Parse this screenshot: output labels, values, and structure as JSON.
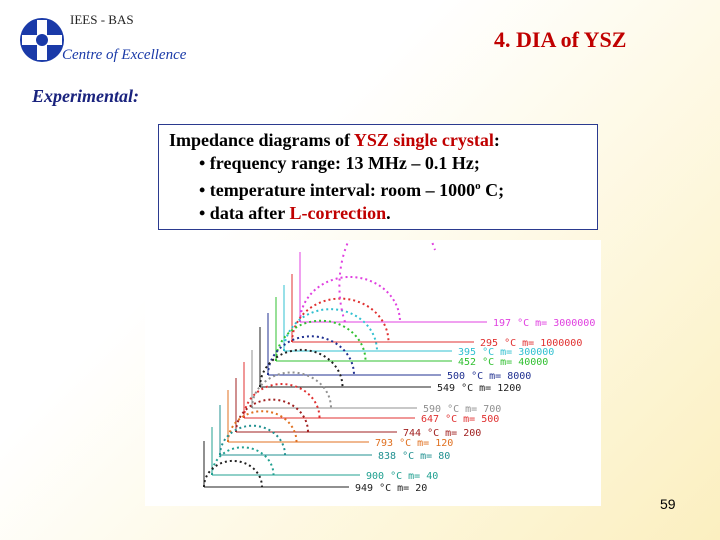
{
  "header": {
    "institute": "IEES - BAS",
    "centre": "Centre of Excellence",
    "title": "4. DIA of YSZ"
  },
  "section": "Experimental:",
  "box": {
    "line1": {
      "before": "Impedance diagrams of ",
      "highlight": "YSZ single crystal",
      "after": ":"
    },
    "line2": "• frequency range: 13 MHz – 0.1 Hz;",
    "line3": {
      "text": "• temperature interval:  room – 1000",
      "sup": "o",
      "after": " C;"
    },
    "line4": {
      "before": "• data after ",
      "highlight": "L-correction",
      "after": "."
    }
  },
  "plot": {
    "labels": [
      "197 °C  m= 3000000",
      "295 °C  m= 1000000",
      "395 °C  m= 300000",
      "452 °C  m= 40000",
      "500 °C  m= 8000",
      "549 °C  m= 1200",
      "590 °C  m= 700",
      "647 °C  m= 500",
      "744 °C  m= 200",
      "793 °C  m= 120",
      "838 °C  m= 80",
      "900 °C  m= 40",
      "949 °C  m= 20"
    ]
  },
  "page_number": "59"
}
